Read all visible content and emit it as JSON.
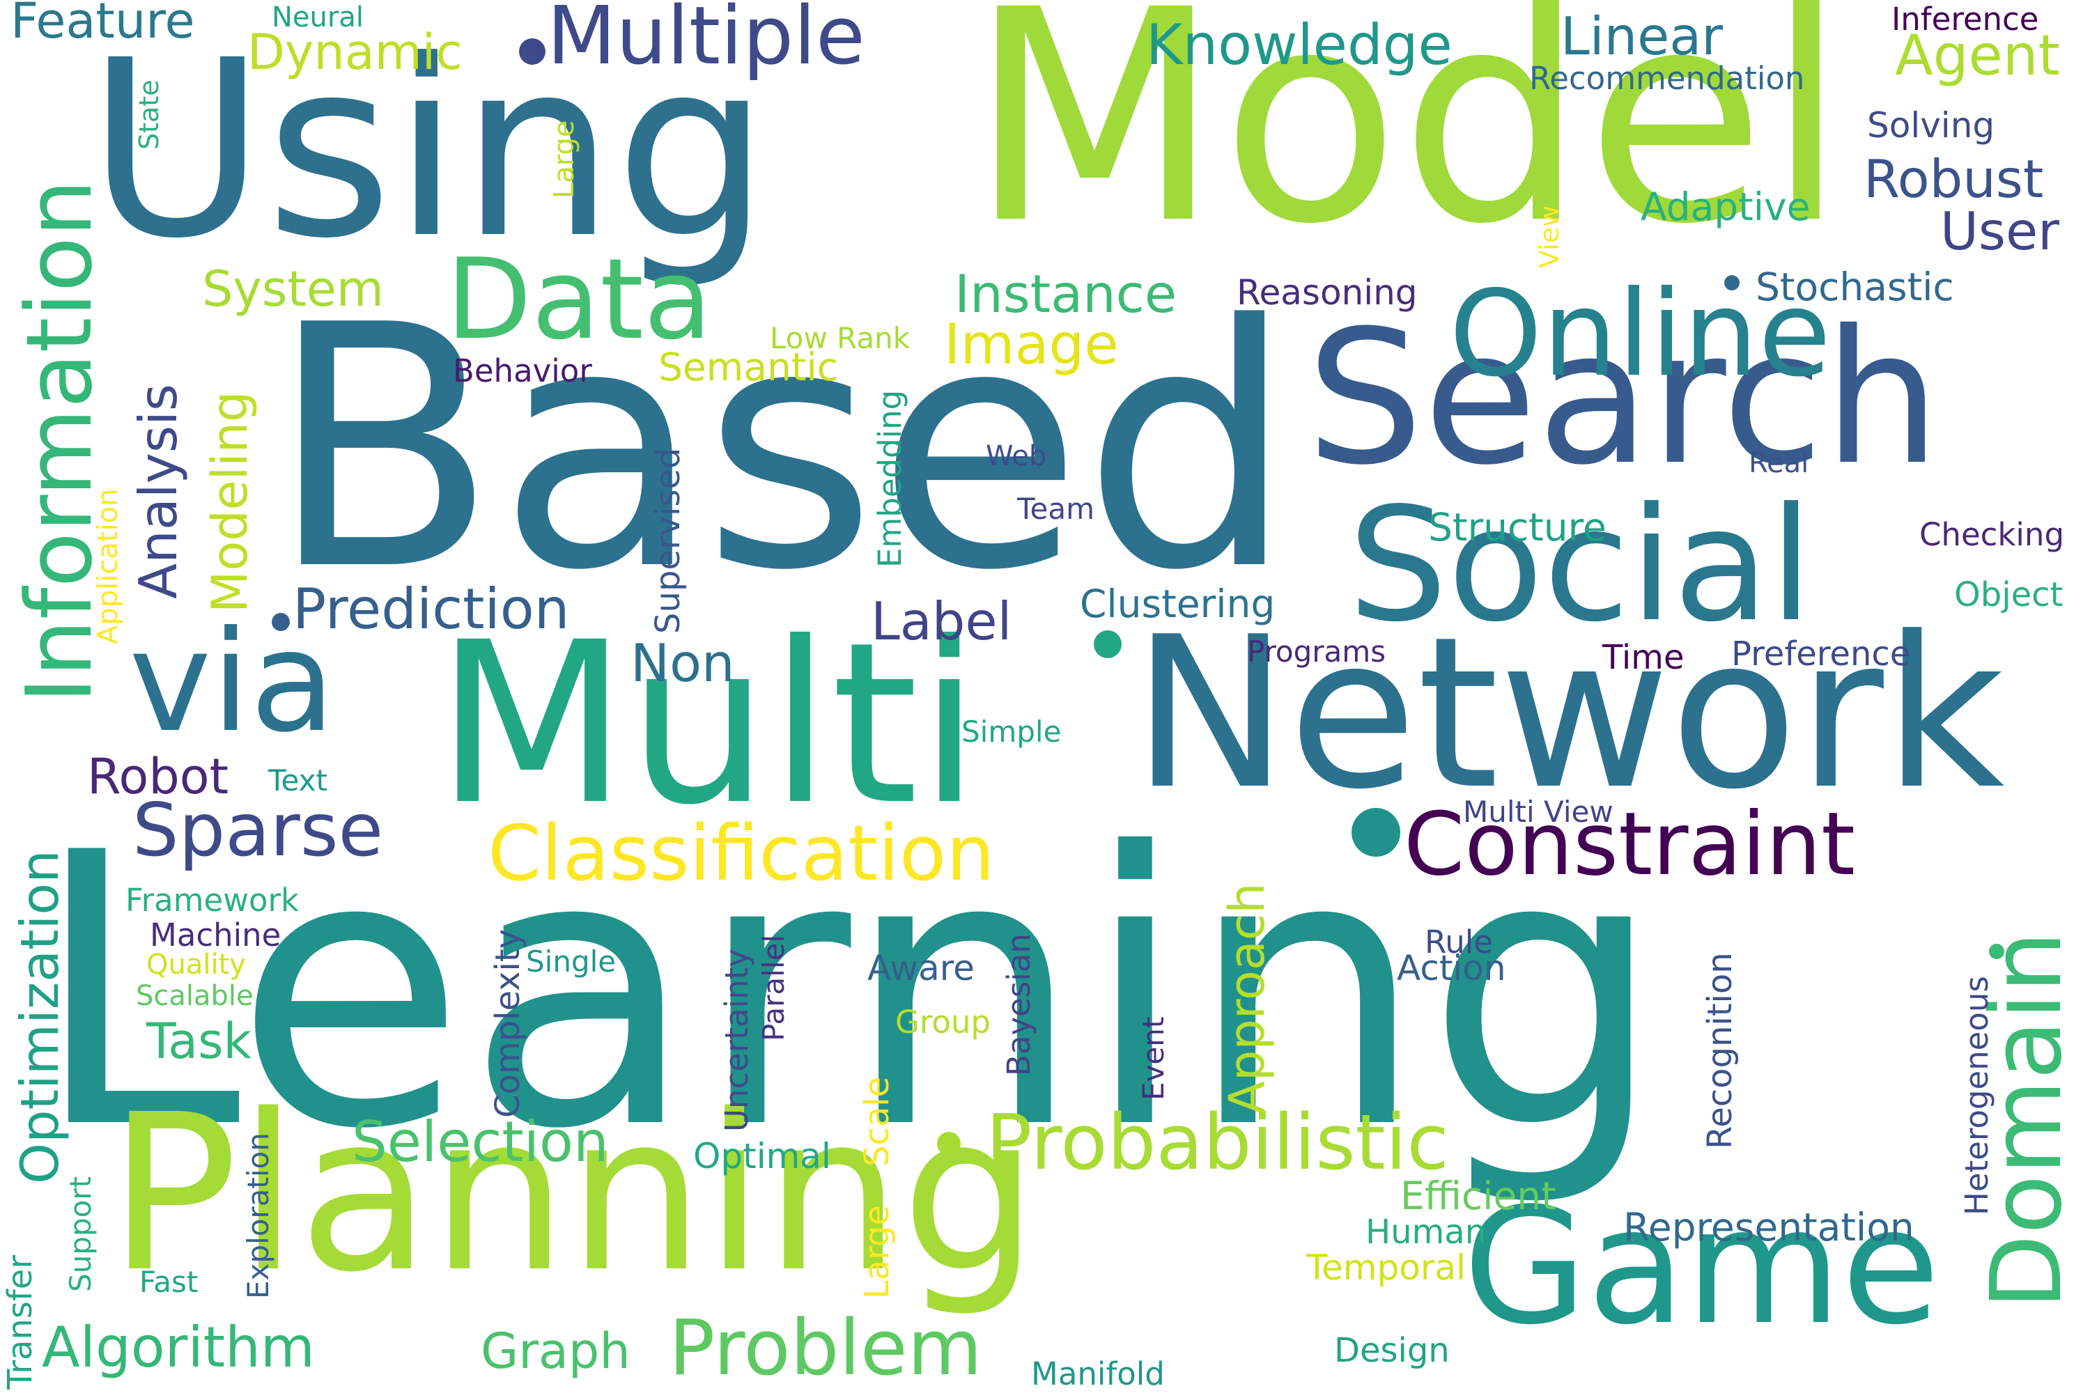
{
  "words": [
    {
      "text": "Learning",
      "color": "#21918c"
    },
    {
      "text": "Based",
      "color": "#2c728e"
    },
    {
      "text": "Model",
      "color": "#9fda3a"
    },
    {
      "text": "Using",
      "color": "#2d718e"
    },
    {
      "text": "Multi",
      "color": "#22a785"
    },
    {
      "text": "Network",
      "color": "#2c728e"
    },
    {
      "text": "Planning",
      "color": "#a5db36"
    },
    {
      "text": "Search",
      "color": "#375b8d"
    },
    {
      "text": "Social",
      "color": "#2a788e"
    },
    {
      "text": "Online",
      "color": "#26828e"
    },
    {
      "text": "Game",
      "color": "#1f988b"
    },
    {
      "text": "via",
      "color": "#2c728e"
    },
    {
      "text": "Data",
      "color": "#44bf70"
    },
    {
      "text": "Information",
      "color": "#35b779"
    },
    {
      "text": "Constraint",
      "color": "#440154"
    },
    {
      "text": "Domain",
      "color": "#3bbb75"
    },
    {
      "text": "Classification",
      "color": "#fde725"
    },
    {
      "text": "Multiple",
      "color": "#3e4a89"
    },
    {
      "text": "Probabilistic",
      "color": "#a8db34"
    },
    {
      "text": "Problem",
      "color": "#5ec962"
    },
    {
      "text": "Sparse",
      "color": "#3e4a89"
    },
    {
      "text": "Prediction",
      "color": "#355f8d"
    },
    {
      "text": "Selection",
      "color": "#4ac16d"
    },
    {
      "text": "Algorithm",
      "color": "#35b779"
    },
    {
      "text": "Optimization",
      "color": "#1fa187"
    },
    {
      "text": "Knowledge",
      "color": "#1f988b"
    },
    {
      "text": "Image",
      "color": "#e5e419"
    },
    {
      "text": "Instance",
      "color": "#3bbb75"
    },
    {
      "text": "Linear",
      "color": "#2a788e"
    },
    {
      "text": "Agent",
      "color": "#addc30"
    },
    {
      "text": "Robust",
      "color": "#3b528b"
    },
    {
      "text": "User",
      "color": "#414487"
    },
    {
      "text": "Analysis",
      "color": "#3e4a89"
    },
    {
      "text": "Approach",
      "color": "#b5de2b"
    },
    {
      "text": "Label",
      "color": "#414487"
    },
    {
      "text": "Non",
      "color": "#2c728e"
    },
    {
      "text": "Robot",
      "color": "#482878"
    },
    {
      "text": "Graph",
      "color": "#4ac16d"
    },
    {
      "text": "Task",
      "color": "#35b779"
    },
    {
      "text": "Dynamic",
      "color": "#bddf26"
    },
    {
      "text": "Feature",
      "color": "#2a788e"
    },
    {
      "text": "System",
      "color": "#a8db34"
    },
    {
      "text": "Modeling",
      "color": "#bddf26"
    },
    {
      "text": "Semantic",
      "color": "#c8e020"
    },
    {
      "text": "Clustering",
      "color": "#2c728e"
    },
    {
      "text": "Structure",
      "color": "#1fa187"
    },
    {
      "text": "Stochastic",
      "color": "#31688e"
    },
    {
      "text": "Adaptive",
      "color": "#2ab07f"
    },
    {
      "text": "Reasoning",
      "color": "#472d7b"
    },
    {
      "text": "Efficient",
      "color": "#65cb5e"
    },
    {
      "text": "Representation",
      "color": "#31688e"
    },
    {
      "text": "Recognition",
      "color": "#3b528b"
    },
    {
      "text": "Heterogeneous",
      "color": "#3e4a89"
    },
    {
      "text": "Temporal",
      "color": "#d2e21b"
    },
    {
      "text": "Human",
      "color": "#26ad81"
    },
    {
      "text": "Design",
      "color": "#20a486"
    },
    {
      "text": "Manifold",
      "color": "#1f988b"
    },
    {
      "text": "Large",
      "color": "#fde725"
    },
    {
      "text": "Scale",
      "color": "#fde725"
    },
    {
      "text": "Optimal",
      "color": "#22a785"
    },
    {
      "text": "Group",
      "color": "#b5de2b"
    },
    {
      "text": "Aware",
      "color": "#355f8d"
    },
    {
      "text": "Rule",
      "color": "#3e4a89"
    },
    {
      "text": "Action",
      "color": "#355f8d"
    },
    {
      "text": "Bayesian",
      "color": "#414487"
    },
    {
      "text": "Event",
      "color": "#472d7b"
    },
    {
      "text": "Parallel",
      "color": "#46337e"
    },
    {
      "text": "Uncertainty",
      "color": "#3e4a89"
    },
    {
      "text": "Complexity",
      "color": "#3b528b"
    },
    {
      "text": "Single",
      "color": "#1f988b"
    },
    {
      "text": "Machine",
      "color": "#472d7b"
    },
    {
      "text": "Framework",
      "color": "#2ab07f"
    },
    {
      "text": "Quality",
      "color": "#d2e21b"
    },
    {
      "text": "Scalable",
      "color": "#5ec962"
    },
    {
      "text": "Text",
      "color": "#1f988b"
    },
    {
      "text": "Simple",
      "color": "#22a785"
    },
    {
      "text": "Programs",
      "color": "#482878"
    },
    {
      "text": "Time",
      "color": "#440154"
    },
    {
      "text": "Preference",
      "color": "#3e4a89"
    },
    {
      "text": "Multi View",
      "color": "#414487"
    },
    {
      "text": "Object",
      "color": "#2ab07f"
    },
    {
      "text": "Checking",
      "color": "#482878"
    },
    {
      "text": "Real",
      "color": "#3b528b"
    },
    {
      "text": "Web",
      "color": "#3e4a89"
    },
    {
      "text": "Team",
      "color": "#404688"
    },
    {
      "text": "Behavior",
      "color": "#481a6c"
    },
    {
      "text": "Low Rank",
      "color": "#a8db34"
    },
    {
      "text": "Embedding",
      "color": "#20a486"
    },
    {
      "text": "Supervised",
      "color": "#38588c"
    },
    {
      "text": "Application",
      "color": "#fde725"
    },
    {
      "text": "State",
      "color": "#2ab07f"
    },
    {
      "text": "Neural",
      "color": "#20a486"
    },
    {
      "text": "Large",
      "color": "#bddf26"
    },
    {
      "text": "View",
      "color": "#fde725"
    },
    {
      "text": "Recommendation",
      "color": "#31688e"
    },
    {
      "text": "Solving",
      "color": "#3e4a89"
    },
    {
      "text": "Inference",
      "color": "#440154"
    },
    {
      "text": "Exploration",
      "color": "#355f8d"
    },
    {
      "text": "Support",
      "color": "#2ab07f"
    },
    {
      "text": "Transfer",
      "color": "#22a785"
    },
    {
      "text": "Fast",
      "color": "#22a785"
    }
  ]
}
